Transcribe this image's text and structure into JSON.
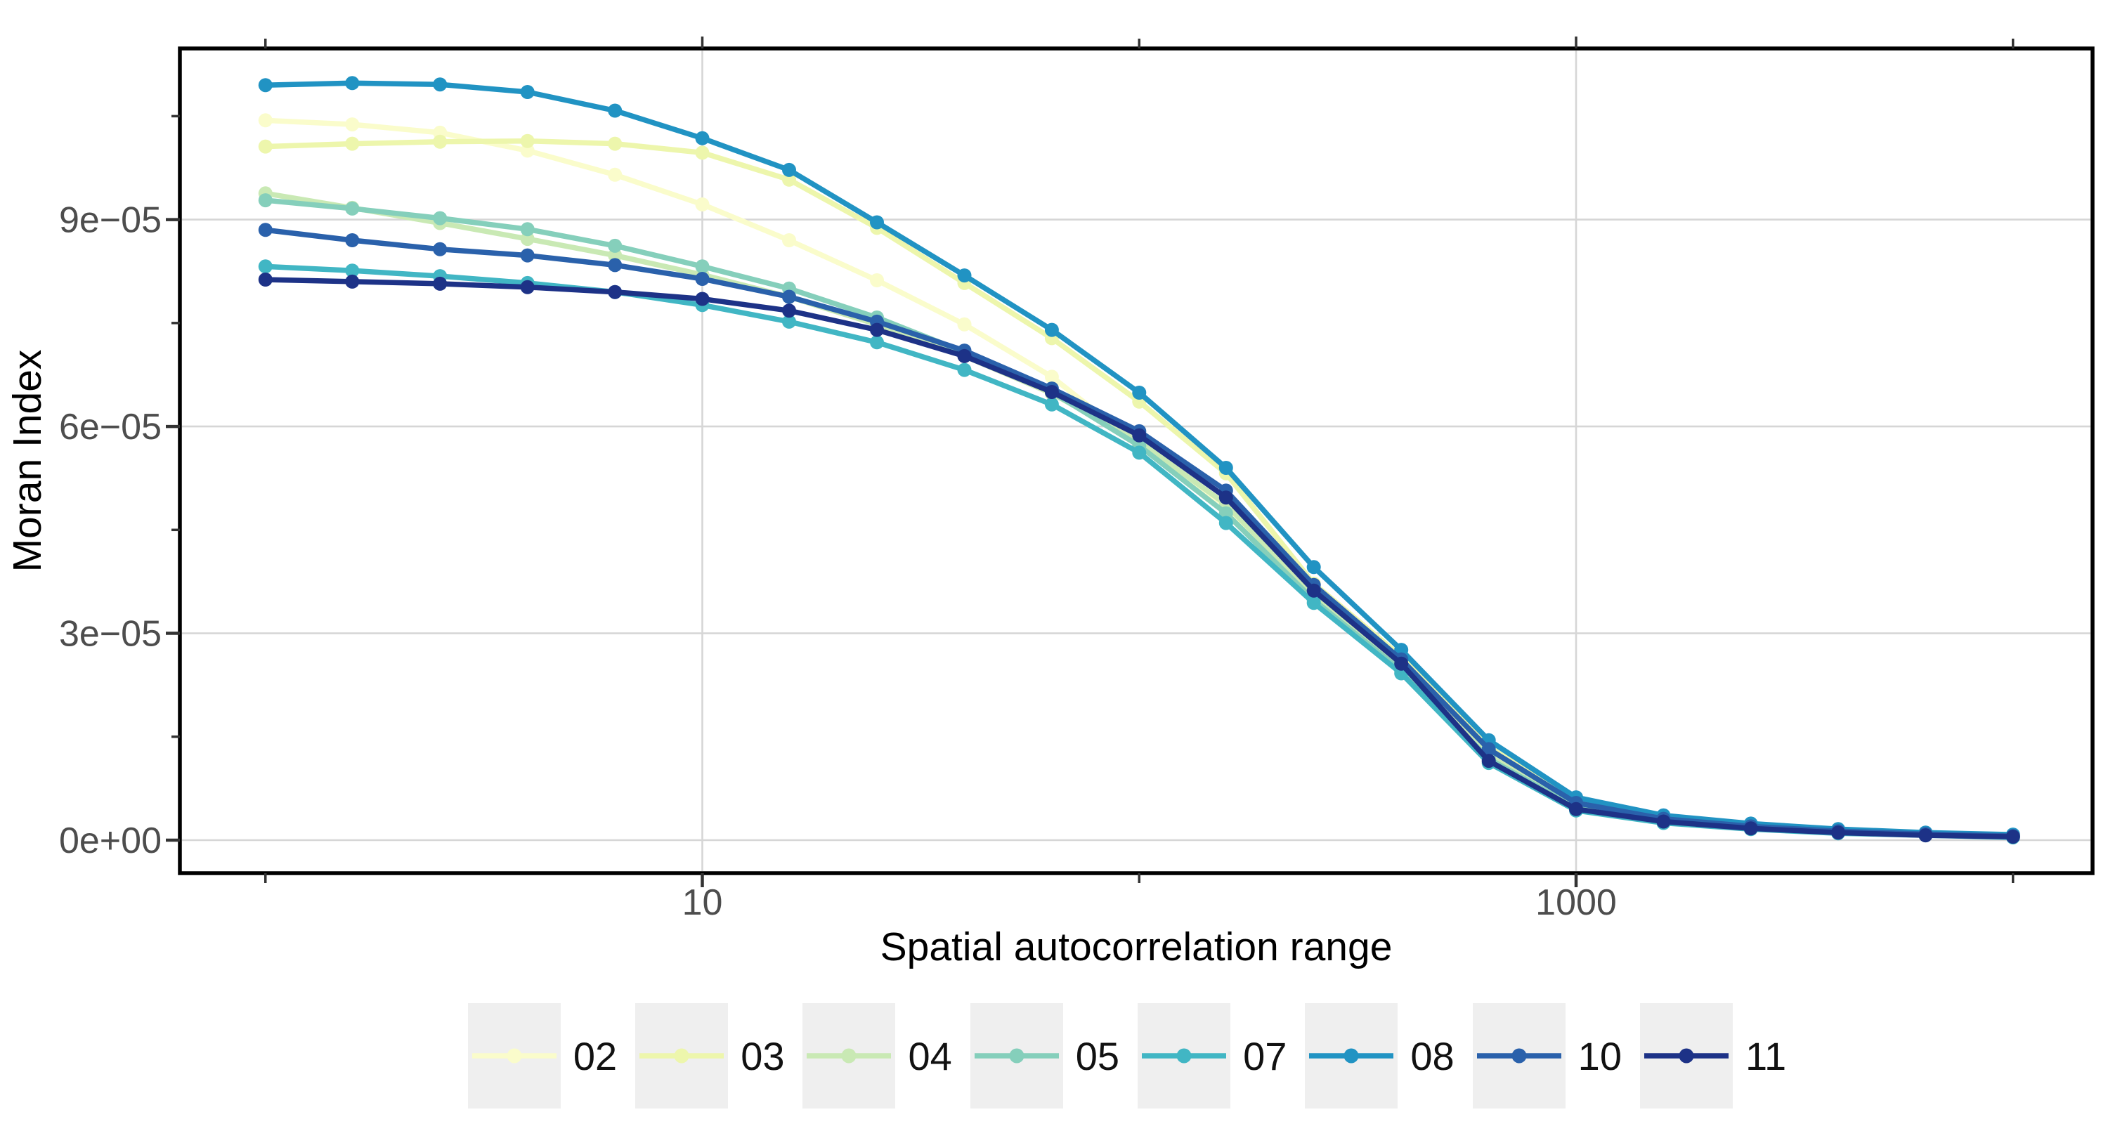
{
  "chart_data": {
    "type": "line",
    "title": "",
    "xlabel": "Spatial autocorrelation range",
    "ylabel": "Moran Index",
    "x_scale": "log10",
    "x_range": [
      0.64,
      15000
    ],
    "ylim": [
      0,
      0.0001148
    ],
    "grid": "major-only",
    "legend_position": "bottom",
    "marker": "point-on-line",
    "x": [
      1,
      1.58,
      2.51,
      3.98,
      6.31,
      10,
      15.8,
      25.1,
      39.8,
      63.1,
      100,
      158,
      251,
      398,
      631,
      1000,
      1585,
      2512,
      3981,
      6310,
      10000
    ],
    "series": [
      {
        "name": "02",
        "color": "#FAFCCB",
        "values": [
          0.0001044,
          0.0001038,
          0.0001026,
          0.0001,
          9.65e-05,
          9.22e-05,
          8.7e-05,
          8.12e-05,
          7.48e-05,
          6.72e-05,
          5.72e-05,
          4.85e-05,
          3.55e-05,
          2.5e-05,
          1.25e-05,
          5.2e-06,
          3e-06,
          2e-06,
          1.3e-06,
          9e-07,
          6e-07
        ]
      },
      {
        "name": "03",
        "color": "#EDF6AC",
        "values": [
          0.0001006,
          0.000101,
          0.0001013,
          0.0001014,
          0.000101,
          9.97e-05,
          9.58e-05,
          8.88e-05,
          8.08e-05,
          7.28e-05,
          6.36e-05,
          5.32e-05,
          3.72e-05,
          2.66e-05,
          1.35e-05,
          5.7e-06,
          3.3e-06,
          2.2e-06,
          1.5e-06,
          1e-06,
          7e-07
        ]
      },
      {
        "name": "04",
        "color": "#C9E9B4",
        "values": [
          9.38e-05,
          9.17e-05,
          8.95e-05,
          8.72e-05,
          8.48e-05,
          8.2e-05,
          7.88e-05,
          7.48e-05,
          7.02e-05,
          6.48e-05,
          5.78e-05,
          4.87e-05,
          3.55e-05,
          2.5e-05,
          1.22e-05,
          5e-06,
          2.9e-06,
          2e-06,
          1.3e-06,
          9e-07,
          6e-07
        ]
      },
      {
        "name": "05",
        "color": "#85CFBB",
        "values": [
          9.28e-05,
          9.16e-05,
          9.02e-05,
          8.86e-05,
          8.62e-05,
          8.32e-05,
          8e-05,
          7.58e-05,
          7.08e-05,
          6.5e-05,
          5.72e-05,
          4.74e-05,
          3.48e-05,
          2.46e-05,
          1.18e-05,
          4.7e-06,
          2.7e-06,
          1.8e-06,
          1.2e-06,
          8e-07,
          5e-07
        ]
      },
      {
        "name": "07",
        "color": "#41B6C4",
        "values": [
          8.32e-05,
          8.26e-05,
          8.18e-05,
          8.08e-05,
          7.95e-05,
          7.76e-05,
          7.52e-05,
          7.22e-05,
          6.82e-05,
          6.32e-05,
          5.62e-05,
          4.6e-05,
          3.44e-05,
          2.42e-05,
          1.12e-05,
          4.3e-06,
          2.5e-06,
          1.6e-06,
          1e-06,
          7e-07,
          4e-07
        ]
      },
      {
        "name": "08",
        "color": "#2193C3",
        "values": [
          0.0001095,
          0.0001098,
          0.0001096,
          0.0001085,
          0.0001058,
          0.0001018,
          9.72e-05,
          8.96e-05,
          8.19e-05,
          7.4e-05,
          6.49e-05,
          5.4e-05,
          3.96e-05,
          2.76e-05,
          1.45e-05,
          6.2e-06,
          3.6e-06,
          2.4e-06,
          1.6e-06,
          1.1e-06,
          8e-07
        ]
      },
      {
        "name": "10",
        "color": "#2A61AB",
        "values": [
          8.85e-05,
          8.7e-05,
          8.57e-05,
          8.48e-05,
          8.34e-05,
          8.14e-05,
          7.88e-05,
          7.52e-05,
          7.1e-05,
          6.55e-05,
          5.93e-05,
          5.07e-05,
          3.7e-05,
          2.62e-05,
          1.32e-05,
          5.4e-06,
          3.1e-06,
          2e-06,
          1.3e-06,
          9e-07,
          6e-07
        ]
      },
      {
        "name": "11",
        "color": "#1D3287",
        "values": [
          8.13e-05,
          8.1e-05,
          8.07e-05,
          8.02e-05,
          7.95e-05,
          7.85e-05,
          7.68e-05,
          7.4e-05,
          7.02e-05,
          6.5e-05,
          5.87e-05,
          4.97e-05,
          3.62e-05,
          2.56e-05,
          1.15e-05,
          4.5e-06,
          2.7e-06,
          1.7e-06,
          1.1e-06,
          7e-07,
          5e-07
        ]
      }
    ],
    "x_axis": {
      "major_ticks": [
        10,
        1000
      ],
      "major_tick_labels": [
        "10",
        "1000"
      ],
      "minor_ticks": [
        1,
        100,
        10000
      ]
    },
    "y_axis": {
      "major_ticks": [
        0,
        3e-05,
        6e-05,
        9e-05
      ],
      "major_tick_labels": [
        "0e+00",
        "3e−05",
        "6e−05",
        "9e−05"
      ],
      "minor_ticks": [
        1.5e-05,
        4.5e-05,
        7.5e-05,
        0.000105
      ]
    },
    "styles": {
      "background": "#FFFFFF",
      "panel_border_color": "#000000",
      "grid_color": "#D6D6D6",
      "tick_color": "#333333",
      "tick_label_color": "#4D4D4D",
      "axis_title_color": "#000000",
      "legend_key_bg": "#EFEFEF",
      "legend_label_color": "#111111"
    }
  }
}
